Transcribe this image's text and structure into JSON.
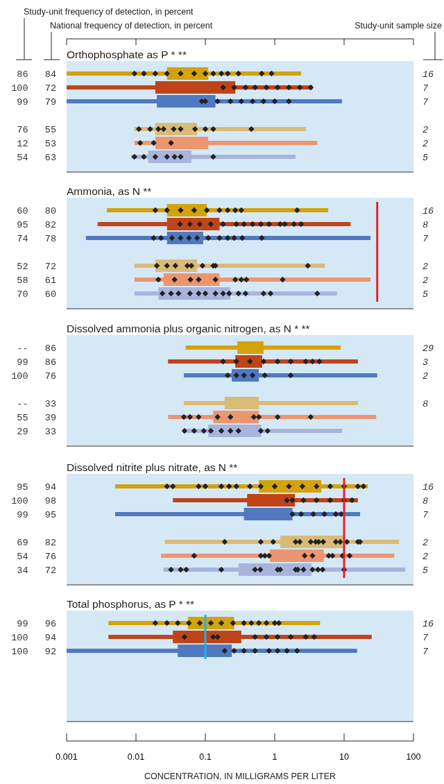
{
  "chart_data": [
    {
      "type": "box",
      "orientation": "horizontal",
      "log": "x",
      "title": "Orthophosphate as P * **",
      "tick_labels": "y",
      "xlim": [
        0.001,
        100
      ],
      "categories": [
        "86   84",
        "100   72",
        "99   79",
        null,
        "76   55",
        "12   53",
        "54   63"
      ],
      "colors": [
        "#d4a20a",
        "#c0441a",
        "#5179c0",
        null,
        "#d9bb78",
        "#eb9670",
        "#a8b4dc"
      ],
      "boxes": [
        {
          "low": 0.001,
          "q1": 0.028,
          "q3": 0.11,
          "high": 2.4,
          "outliers": [
            0.0095,
            0.013,
            0.019,
            0.028,
            0.044,
            0.069,
            0.1,
            0.13,
            0.17,
            0.21,
            0.3,
            0.65,
            0.9
          ]
        },
        {
          "low": 0.001,
          "q1": 0.019,
          "q3": 0.27,
          "high": 3.5,
          "outliers": [
            0.18,
            0.26,
            0.38,
            0.52,
            0.76,
            1.1,
            1.6,
            2.3,
            3.3
          ]
        },
        {
          "low": 0.001,
          "q1": 0.02,
          "q3": 0.14,
          "high": 9.3,
          "outliers": [
            0.089,
            0.1,
            0.15,
            0.23,
            0.33,
            0.48,
            0.69,
            1.0,
            1.6
          ]
        },
        null,
        {
          "low": 0.0095,
          "q1": 0.019,
          "q3": 0.076,
          "high": 2.8,
          "outliers": [
            0.011,
            0.016,
            0.021,
            0.025,
            0.035,
            0.044,
            0.071,
            0.1,
            0.13,
            0.46
          ]
        },
        {
          "low": 0.0095,
          "q1": 0.019,
          "q3": 0.11,
          "high": 4.1,
          "outliers": [
            0.0115,
            0.018,
            0.032
          ]
        },
        {
          "low": 0.0085,
          "q1": 0.015,
          "q3": 0.063,
          "high": 2.0,
          "outliers": [
            0.0095,
            0.013,
            0.019,
            0.028,
            0.036,
            0.044,
            0.13
          ]
        }
      ],
      "annotations": [
        "Study-unit frequency of detection, in percent",
        "National frequency of detection, in percent",
        "Study-unit sample size",
        "16",
        "7",
        "7",
        "2",
        "2",
        "5"
      ]
    },
    {
      "type": "box",
      "orientation": "horizontal",
      "log": "x",
      "title": "Ammonia, as N  **",
      "tick_labels": "y",
      "xlim": [
        0.001,
        100
      ],
      "categories": [
        "60   80",
        "95   82",
        "74   78",
        null,
        "52   72",
        "58   61",
        "70   60"
      ],
      "colors": [
        "#d4a20a",
        "#c0441a",
        "#5179c0",
        null,
        "#d9bb78",
        "#eb9670",
        "#a8b4dc"
      ],
      "boxes": [
        {
          "low": 0.0038,
          "q1": 0.028,
          "q3": 0.105,
          "high": 5.9,
          "outliers": [
            0.019,
            0.028,
            0.044,
            0.069,
            0.105,
            0.16,
            0.21,
            0.27,
            0.33,
            2.1
          ]
        },
        {
          "low": 0.0028,
          "q1": 0.028,
          "q3": 0.16,
          "high": 12.4,
          "outliers": [
            0.043,
            0.06,
            0.083,
            0.12,
            0.18,
            0.28,
            0.36,
            0.48,
            0.63,
            0.83,
            1.2,
            1.4,
            1.9,
            2.4
          ]
        },
        {
          "low": 0.0019,
          "q1": 0.028,
          "q3": 0.093,
          "high": 24,
          "outliers": [
            0.018,
            0.023,
            0.033,
            0.044,
            0.058,
            0.076,
            0.11,
            0.16,
            0.21,
            0.26,
            0.34,
            0.65
          ]
        },
        null,
        {
          "low": 0.0095,
          "q1": 0.019,
          "q3": 0.076,
          "high": 5.3,
          "outliers": [
            0.02,
            0.028,
            0.037,
            0.055,
            0.063,
            0.091,
            0.13,
            0.14,
            3.0
          ]
        },
        {
          "low": 0.0095,
          "q1": 0.025,
          "q3": 0.16,
          "high": 24,
          "outliers": [
            0.021,
            0.036,
            0.061,
            0.08,
            0.14,
            0.27,
            0.33,
            0.39,
            1.3
          ]
        },
        {
          "low": 0.0095,
          "q1": 0.021,
          "q3": 0.23,
          "high": 7.9,
          "outliers": [
            0.024,
            0.032,
            0.041,
            0.06,
            0.08,
            0.1,
            0.14,
            0.18,
            0.22,
            0.3,
            0.38,
            0.69,
            0.87,
            4.1
          ]
        }
      ],
      "ref_lines": [
        {
          "axis": "x",
          "value": 30,
          "color": "#e8202a"
        }
      ],
      "annotations": [
        "16",
        "8",
        "7",
        "2",
        "2",
        "5"
      ]
    },
    {
      "type": "box",
      "orientation": "horizontal",
      "log": "x",
      "title": "Dissolved ammonia plus organic nitrogen, as N * **",
      "tick_labels": "y",
      "xlim": [
        0.001,
        100
      ],
      "categories": [
        "--   86",
        "99   86",
        "100   76",
        null,
        "--   33",
        "55   39",
        "29   33"
      ],
      "colors": [
        "#d4a20a",
        "#c0441a",
        "#5179c0",
        null,
        "#d9bb78",
        "#eb9670",
        "#a8b4dc"
      ],
      "boxes": [
        {
          "low": 0.052,
          "q1": 0.29,
          "q3": 0.69,
          "high": 8.9
        },
        {
          "low": 0.029,
          "q1": 0.27,
          "q3": 0.66,
          "high": 15.8,
          "outliers": [
            0.18,
            0.28,
            0.44,
            0.69,
            1.1,
            1.7,
            2.8,
            3.5,
            4.4
          ]
        },
        {
          "low": 0.049,
          "q1": 0.24,
          "q3": 0.59,
          "high": 30,
          "outliers": [
            0.21,
            0.28,
            0.36,
            0.48,
            0.72,
            1.7
          ]
        },
        null,
        {
          "low": 0.049,
          "q1": 0.19,
          "q3": 0.59,
          "high": 15.8
        },
        {
          "low": 0.029,
          "q1": 0.13,
          "q3": 0.59,
          "high": 29,
          "outliers": [
            0.049,
            0.06,
            0.08,
            0.15,
            0.23,
            0.5,
            0.59,
            1.1,
            3.3
          ]
        },
        {
          "low": 0.049,
          "q1": 0.11,
          "q3": 0.64,
          "high": 9.4,
          "outliers": [
            0.05,
            0.069,
            0.095,
            0.12,
            0.17,
            0.23,
            0.3,
            0.63,
            0.79
          ]
        }
      ],
      "annotations": [
        "29",
        "3",
        "2",
        "8"
      ]
    },
    {
      "type": "box",
      "orientation": "horizontal",
      "log": "x",
      "title": "Dissolved nitrite plus nitrate, as N  **",
      "tick_labels": "y",
      "xlim": [
        0.001,
        100
      ],
      "categories": [
        "95   94",
        "100   98",
        "99   95",
        null,
        "69   82",
        "54   76",
        "34   72"
      ],
      "colors": [
        "#d4a20a",
        "#c0441a",
        "#5179c0",
        null,
        "#d9bb78",
        "#eb9670",
        "#a8b4dc"
      ],
      "boxes": [
        {
          "low": 0.005,
          "q1": 0.59,
          "q3": 4.7,
          "high": 22,
          "outliers": [
            0.028,
            0.034,
            0.08,
            0.1,
            0.17,
            0.22,
            0.28,
            0.44,
            0.63,
            1.0,
            1.6,
            2.5,
            4.0,
            6.3,
            10,
            15.8,
            19
          ]
        },
        {
          "low": 0.034,
          "q1": 0.4,
          "q3": 1.96,
          "high": 15.8,
          "outliers": [
            1.5,
            1.8,
            2.6,
            4.0,
            6.3,
            10,
            13
          ]
        },
        {
          "low": 0.005,
          "q1": 0.36,
          "q3": 1.8,
          "high": 17,
          "outliers": [
            1.8,
            2.4,
            3.6,
            5.2,
            7.6,
            9.1
          ]
        },
        null,
        {
          "low": 0.026,
          "q1": 1.2,
          "q3": 10,
          "high": 62,
          "outliers": [
            0.19,
            0.63,
            0.95,
            2.0,
            2.3,
            3.3,
            3.9,
            4.3,
            5.0,
            7.6,
            8.8,
            11,
            15.8,
            17
          ]
        },
        {
          "low": 0.023,
          "q1": 0.85,
          "q3": 5.1,
          "high": 53,
          "outliers": [
            0.069,
            0.63,
            0.72,
            0.83,
            2.7,
            3.5,
            6.0,
            6.8,
            9.5,
            12
          ]
        },
        {
          "low": 0.025,
          "q1": 0.3,
          "q3": 3.4,
          "high": 76,
          "outliers": [
            0.032,
            0.044,
            0.053,
            0.17,
            0.52,
            0.62,
            1.1,
            1.2,
            2.0,
            2.15,
            2.6,
            3.5,
            4.2,
            4.9,
            10
          ]
        }
      ],
      "ref_lines": [
        {
          "axis": "x",
          "value": 10,
          "color": "#e8202a"
        }
      ],
      "annotations": [
        "16",
        "8",
        "7",
        "2",
        "2",
        "5"
      ]
    },
    {
      "type": "box",
      "orientation": "horizontal",
      "log": "x",
      "title": "Total phosphorus, as P * **",
      "xlabel": "CONCENTRATION, IN MILLIGRAMS PER LITER",
      "xlim": [
        0.001,
        100
      ],
      "xticks": [
        0.001,
        0.01,
        0.1,
        1,
        10,
        100
      ],
      "categories": [
        "99   96",
        "100   94",
        "100   92",
        null,
        null,
        null,
        null
      ],
      "colors": [
        "#d4a20a",
        "#c0441a",
        "#5179c0",
        null,
        null,
        null,
        null
      ],
      "boxes": [
        {
          "low": 0.004,
          "q1": 0.056,
          "q3": 0.26,
          "high": 4.5,
          "outliers": [
            0.019,
            0.028,
            0.04,
            0.058,
            0.083,
            0.12,
            0.17,
            0.25,
            0.36,
            0.46,
            0.59,
            0.76,
            1.0,
            1.15
          ]
        },
        {
          "low": 0.004,
          "q1": 0.034,
          "q3": 0.33,
          "high": 25,
          "outliers": [
            0.05,
            0.13,
            0.15,
            0.52,
            0.76,
            1.1,
            1.7,
            2.8,
            3.7
          ]
        },
        {
          "low": 0.001,
          "q1": 0.04,
          "q3": 0.24,
          "high": 15.4,
          "outliers": [
            0.19,
            0.26,
            0.36,
            0.52,
            0.83,
            1.1,
            1.5,
            2.1
          ]
        },
        null,
        null,
        null,
        null
      ],
      "ref_lines": [
        {
          "axis": "x",
          "value": 0.1,
          "color": "#1eb4e8"
        }
      ],
      "annotations": [
        "16",
        "7",
        "7"
      ]
    }
  ]
}
